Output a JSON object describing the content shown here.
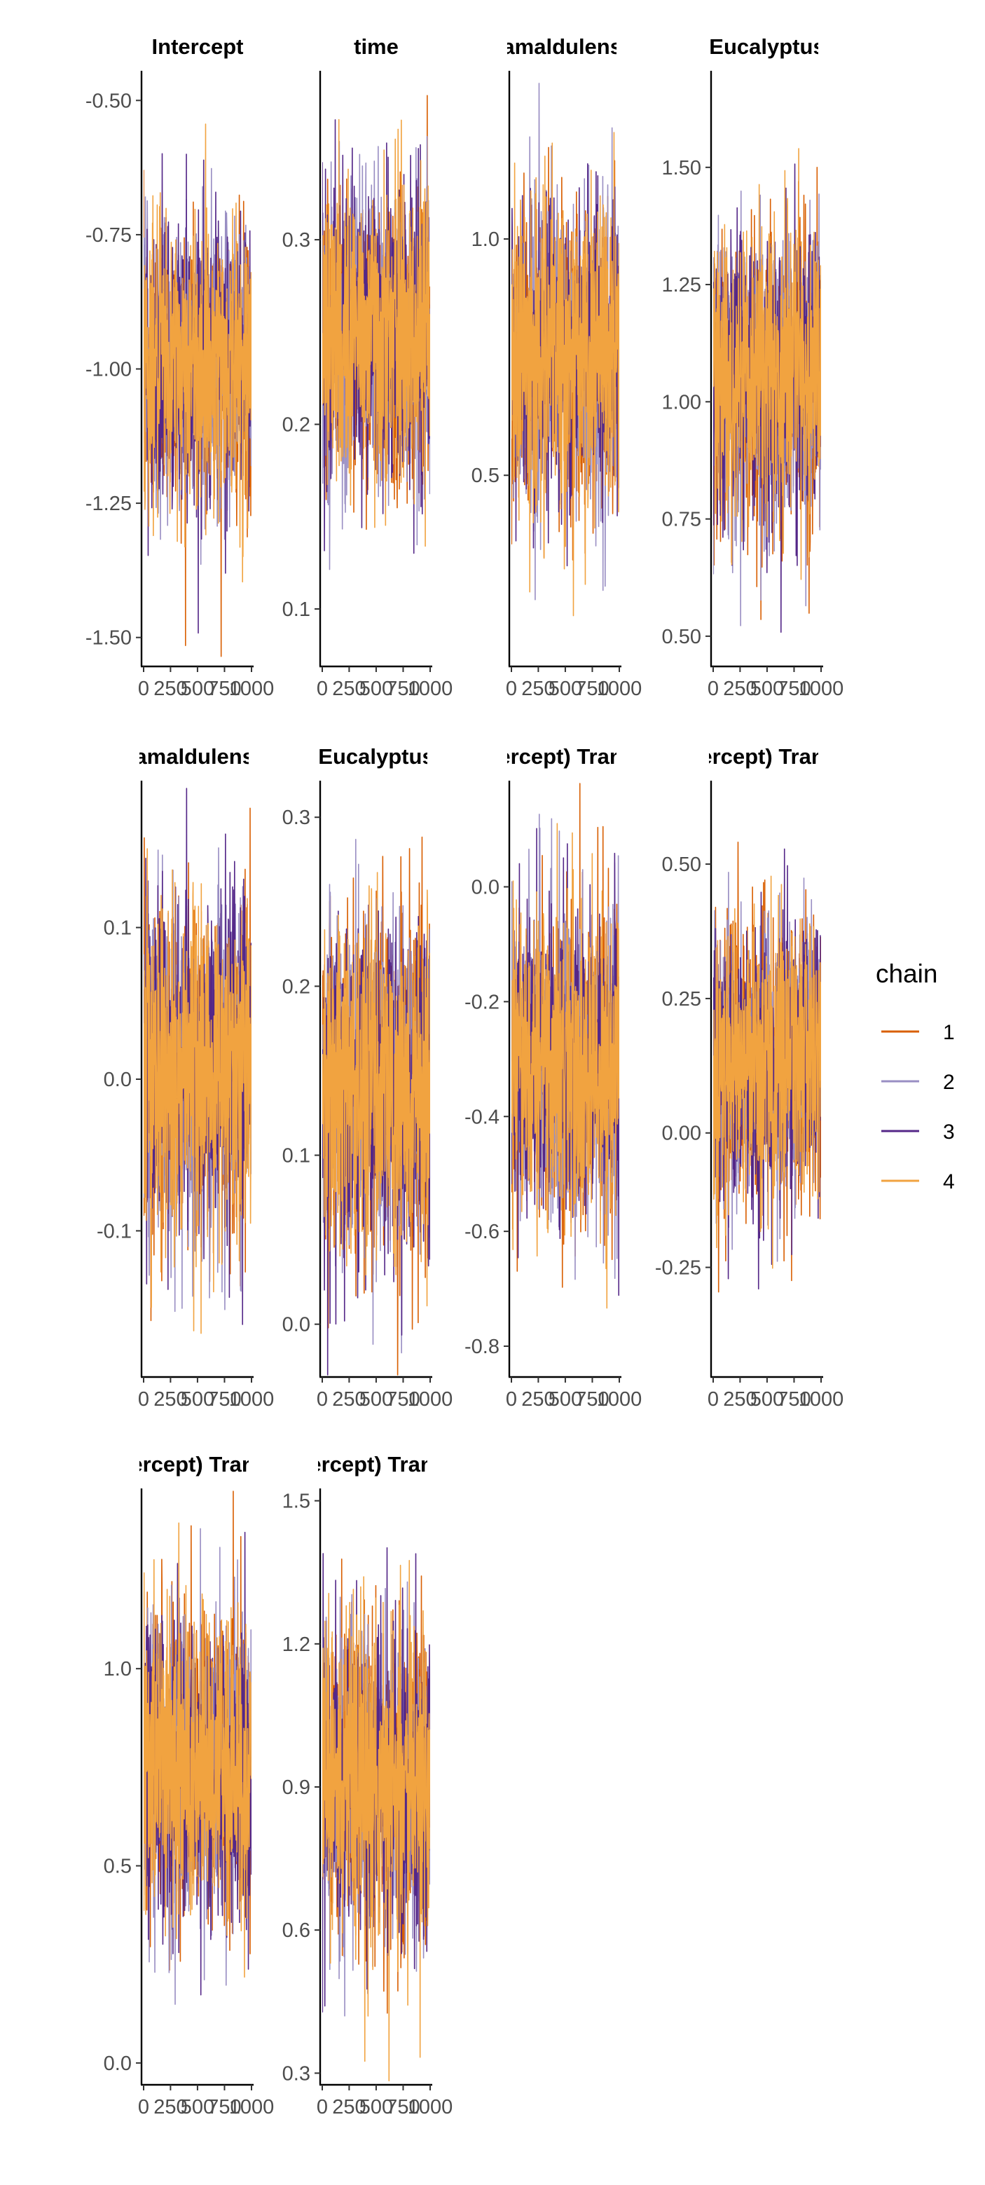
{
  "legend": {
    "title": "chain",
    "items": [
      {
        "label": "1",
        "color": "#d95f02"
      },
      {
        "label": "2",
        "color": "#998ec3"
      },
      {
        "label": "3",
        "color": "#542788"
      },
      {
        "label": "4",
        "color": "#f1a340"
      }
    ]
  },
  "chart_data": [
    {
      "type": "line",
      "title": "Intercept",
      "x_ticks": [
        "0",
        "250",
        "500",
        "750",
        "1000"
      ],
      "x_range": [
        1,
        1000
      ],
      "y_range": [
        -1.55,
        -0.45
      ],
      "y_ticks": [
        -1.5,
        -1.25,
        -1.0,
        -0.75,
        -0.5
      ],
      "y_tick_labels": [
        "-1.50",
        "-1.25",
        "-1.00",
        "-0.75",
        "-0.50"
      ],
      "center": -0.99,
      "sd": 0.13
    },
    {
      "type": "line",
      "title": "time",
      "x_ticks": [
        "0",
        "250",
        "500",
        "750",
        "1000"
      ],
      "x_range": [
        1,
        1000
      ],
      "y_range": [
        0.07,
        0.39
      ],
      "y_ticks": [
        0.1,
        0.2,
        0.3
      ],
      "y_tick_labels": [
        "0.1",
        "0.2",
        "0.3"
      ],
      "center": 0.25,
      "sd": 0.04
    },
    {
      "type": "line",
      "title": "camaldulensis",
      "x_ticks": [
        "0",
        "250",
        "500",
        "750",
        "1000"
      ],
      "x_range": [
        1,
        1000
      ],
      "y_range": [
        0.1,
        1.35
      ],
      "y_ticks": [
        0.5,
        1.0
      ],
      "y_tick_labels": [
        "0.5",
        "1.0"
      ],
      "center": 0.75,
      "sd": 0.16
    },
    {
      "type": "line",
      "title": "Eucalyptus",
      "x_ticks": [
        "0",
        "250",
        "500",
        "750",
        "1000"
      ],
      "x_range": [
        1,
        1000
      ],
      "y_range": [
        0.44,
        1.7
      ],
      "y_ticks": [
        0.5,
        0.75,
        1.0,
        1.25,
        1.5
      ],
      "y_tick_labels": [
        "0.50",
        "0.75",
        "1.00",
        "1.25",
        "1.50"
      ],
      "center": 1.05,
      "sd": 0.15
    },
    {
      "type": "line",
      "title": "camaldulensis",
      "x_ticks": [
        "0",
        "250",
        "500",
        "750",
        "1000"
      ],
      "x_range": [
        1,
        1000
      ],
      "y_range": [
        -0.195,
        0.195
      ],
      "y_ticks": [
        -0.1,
        0.0,
        0.1
      ],
      "y_tick_labels": [
        "-0.1",
        "0.0",
        "0.1"
      ],
      "center": 0.01,
      "sd": 0.055
    },
    {
      "type": "line",
      "title": "Eucalyptus",
      "x_ticks": [
        "0",
        "250",
        "500",
        "750",
        "1000"
      ],
      "x_range": [
        1,
        1000
      ],
      "y_range": [
        -0.03,
        0.32
      ],
      "y_ticks": [
        0.0,
        0.1,
        0.2,
        0.3
      ],
      "y_tick_labels": [
        "0.0",
        "0.1",
        "0.2",
        "0.3"
      ],
      "center": 0.14,
      "sd": 0.05
    },
    {
      "type": "line",
      "title": "(Intercept) Transect",
      "x_ticks": [
        "0",
        "250",
        "500",
        "750",
        "1000"
      ],
      "x_range": [
        1,
        1000
      ],
      "y_range": [
        -0.85,
        0.18
      ],
      "y_ticks": [
        -0.8,
        -0.6,
        -0.4,
        -0.2,
        0.0
      ],
      "y_tick_labels": [
        "-0.8",
        "-0.6",
        "-0.4",
        "-0.2",
        "0.0"
      ],
      "center": -0.31,
      "sd": 0.13
    },
    {
      "type": "line",
      "title": "(Intercept) Transect",
      "x_ticks": [
        "0",
        "250",
        "500",
        "750",
        "1000"
      ],
      "x_range": [
        1,
        1000
      ],
      "y_range": [
        -0.45,
        0.65
      ],
      "y_ticks": [
        -0.25,
        0.0,
        0.25,
        0.5
      ],
      "y_tick_labels": [
        "-0.25",
        "0.00",
        "0.25",
        "0.50"
      ],
      "center": 0.13,
      "sd": 0.13
    },
    {
      "type": "line",
      "title": "(Intercept) Transect",
      "x_ticks": [
        "0",
        "250",
        "500",
        "750",
        "1000"
      ],
      "x_range": [
        1,
        1000
      ],
      "y_range": [
        -0.05,
        1.45
      ],
      "y_ticks": [
        0.0,
        0.5,
        1.0
      ],
      "y_tick_labels": [
        "0.0",
        "0.5",
        "1.0"
      ],
      "center": 0.75,
      "sd": 0.19
    },
    {
      "type": "line",
      "title": "(Intercept) Transect",
      "x_ticks": [
        "0",
        "250",
        "500",
        "750",
        "1000"
      ],
      "x_range": [
        1,
        1000
      ],
      "y_range": [
        0.28,
        1.52
      ],
      "y_ticks": [
        0.3,
        0.6,
        0.9,
        1.2,
        1.5
      ],
      "y_tick_labels": [
        "0.3",
        "0.6",
        "0.9",
        "1.2",
        "1.5"
      ],
      "center": 0.92,
      "sd": 0.16
    }
  ]
}
